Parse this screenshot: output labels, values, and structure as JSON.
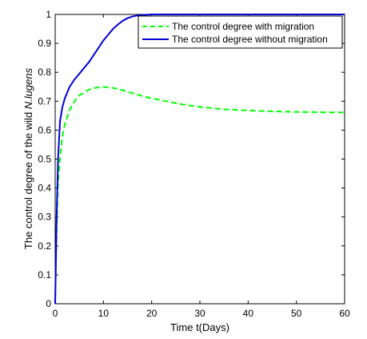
{
  "chart_data": {
    "type": "line",
    "xlabel": "Time t(Days)",
    "ylabel_main": "The control degree of the wild ",
    "ylabel_italic": "N.lugens",
    "xlim": [
      0,
      60
    ],
    "ylim": [
      0,
      1
    ],
    "xticks": [
      0,
      10,
      20,
      30,
      40,
      50,
      60
    ],
    "yticks": [
      0,
      0.1,
      0.2,
      0.3,
      0.4,
      0.5,
      0.6,
      0.7,
      0.8,
      0.9,
      1
    ],
    "grid": false,
    "box": true,
    "legend_position": "top-right",
    "series": [
      {
        "name": "The control degree with migration",
        "color": "#00ff00",
        "style": "dashed",
        "x": [
          0,
          0.3,
          0.6,
          1,
          1.5,
          2,
          3,
          4,
          5,
          6,
          7,
          8,
          9,
          10,
          11,
          12,
          13,
          14,
          16,
          18,
          20,
          23,
          26,
          30,
          35,
          40,
          45,
          50,
          55,
          60
        ],
        "y": [
          0,
          0.25,
          0.42,
          0.5,
          0.58,
          0.62,
          0.67,
          0.7,
          0.72,
          0.73,
          0.74,
          0.745,
          0.748,
          0.749,
          0.748,
          0.746,
          0.742,
          0.738,
          0.728,
          0.718,
          0.71,
          0.7,
          0.69,
          0.68,
          0.672,
          0.668,
          0.665,
          0.663,
          0.662,
          0.661
        ]
      },
      {
        "name": "The control degree without migration",
        "color": "#0000d8",
        "style": "solid",
        "x": [
          0,
          0.3,
          0.6,
          1,
          1.5,
          2,
          3,
          4,
          5,
          6,
          7,
          8,
          9,
          10,
          11,
          12,
          13,
          14,
          15,
          16,
          17,
          18,
          19,
          20,
          22,
          25,
          30,
          40,
          50,
          60
        ],
        "y": [
          0,
          0.3,
          0.5,
          0.63,
          0.68,
          0.71,
          0.75,
          0.775,
          0.795,
          0.815,
          0.835,
          0.86,
          0.885,
          0.91,
          0.93,
          0.95,
          0.965,
          0.978,
          0.987,
          0.993,
          0.996,
          0.998,
          0.999,
          1,
          1,
          1,
          1,
          1,
          1,
          1
        ]
      }
    ]
  }
}
